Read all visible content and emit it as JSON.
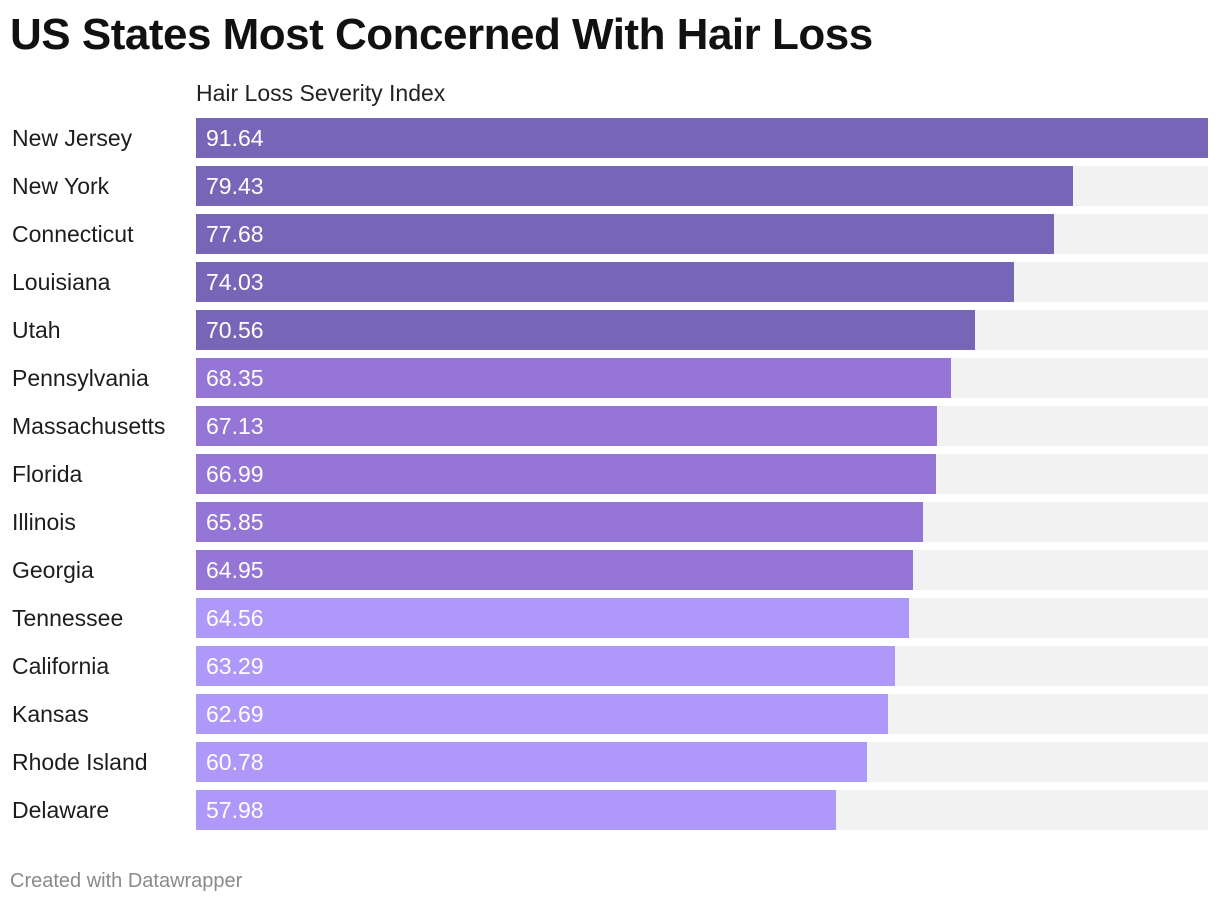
{
  "title": "US States Most Concerned With Hair Loss",
  "footer": "Created with Datawrapper",
  "chart_data": {
    "type": "bar",
    "orientation": "horizontal",
    "column_header": "Hair Loss Severity Index",
    "xlim": [
      0,
      91.64
    ],
    "grid": false,
    "legend": "none",
    "colors": {
      "dark": "#7766b8",
      "medium": "#9575d6",
      "light": "#ae98fa",
      "track": "#f2f2f2"
    },
    "categories": [
      "New Jersey",
      "New York",
      "Connecticut",
      "Louisiana",
      "Utah",
      "Pennsylvania",
      "Massachusetts",
      "Florida",
      "Illinois",
      "Georgia",
      "Tennessee",
      "California",
      "Kansas",
      "Rhode Island",
      "Delaware"
    ],
    "values": [
      91.64,
      79.43,
      77.68,
      74.03,
      70.56,
      68.35,
      67.13,
      66.99,
      65.85,
      64.95,
      64.56,
      63.29,
      62.69,
      60.78,
      57.98
    ],
    "value_labels": [
      "91.64",
      "79.43",
      "77.68",
      "74.03",
      "70.56",
      "68.35",
      "67.13",
      "66.99",
      "65.85",
      "64.95",
      "64.56",
      "63.29",
      "62.69",
      "60.78",
      "57.98"
    ],
    "color_groups": [
      "dark",
      "dark",
      "dark",
      "dark",
      "dark",
      "medium",
      "medium",
      "medium",
      "medium",
      "medium",
      "light",
      "light",
      "light",
      "light",
      "light"
    ]
  }
}
